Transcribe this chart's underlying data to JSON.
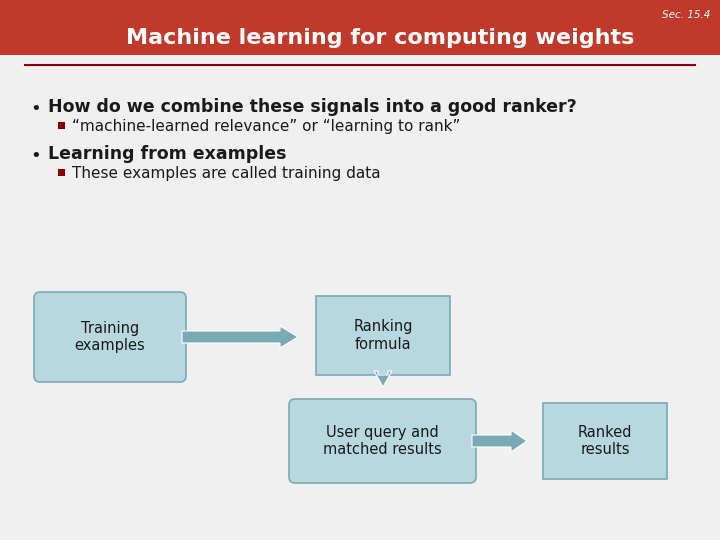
{
  "title": "Machine learning for computing weights",
  "sec_label": "Sec. 15.4",
  "header_bg_color": "#c0392b",
  "header_text_color": "#ffffff",
  "slide_bg_color": "#f0f0f0",
  "bullet1_main": "How do we combine these signals into a good ranker?",
  "bullet1_sub": "“machine-learned relevance” or “learning to rank”",
  "bullet2_main": "Learning from examples",
  "bullet2_sub": "These examples are called training data",
  "box_fill_color": "#b8d8e0",
  "box_edge_color": "#7aaab5",
  "arrow_color": "#7aaab5",
  "bullet_color": "#8b0000",
  "sub_bullet_color": "#8b0000",
  "line_color": "#8b0000",
  "text_color": "#1a1a1a",
  "box_labels": [
    "Training\nexamples",
    "Ranking\nformula",
    "User query and\nmatched results",
    "Ranked\nresults"
  ]
}
